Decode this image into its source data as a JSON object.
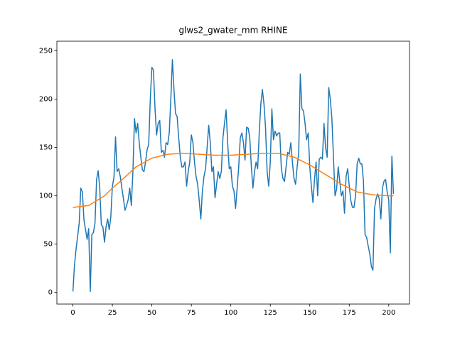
{
  "chart_data": {
    "type": "line",
    "title": "glws2_gwater_mm RHINE",
    "xlim": [
      -10.15,
      213.15
    ],
    "ylim": [
      -12,
      260
    ],
    "xticks": [
      0,
      25,
      50,
      75,
      100,
      125,
      150,
      175,
      200
    ],
    "yticks": [
      0,
      50,
      100,
      150,
      200,
      250
    ],
    "x": [
      0,
      1,
      2,
      3,
      4,
      5,
      6,
      7,
      8,
      9,
      10,
      11,
      12,
      13,
      14,
      15,
      16,
      17,
      18,
      19,
      20,
      21,
      22,
      23,
      24,
      25,
      26,
      27,
      28,
      29,
      30,
      31,
      32,
      33,
      34,
      35,
      36,
      37,
      38,
      39,
      40,
      41,
      42,
      43,
      44,
      45,
      46,
      47,
      48,
      49,
      50,
      51,
      52,
      53,
      54,
      55,
      56,
      57,
      58,
      59,
      60,
      61,
      62,
      63,
      64,
      65,
      66,
      67,
      68,
      69,
      70,
      71,
      72,
      73,
      74,
      75,
      76,
      77,
      78,
      79,
      80,
      81,
      82,
      83,
      84,
      85,
      86,
      87,
      88,
      89,
      90,
      91,
      92,
      93,
      94,
      95,
      96,
      97,
      98,
      99,
      100,
      101,
      102,
      103,
      104,
      105,
      106,
      107,
      108,
      109,
      110,
      111,
      112,
      113,
      114,
      115,
      116,
      117,
      118,
      119,
      120,
      121,
      122,
      123,
      124,
      125,
      126,
      127,
      128,
      129,
      130,
      131,
      132,
      133,
      134,
      135,
      136,
      137,
      138,
      139,
      140,
      141,
      142,
      143,
      144,
      145,
      146,
      147,
      148,
      149,
      150,
      151,
      152,
      153,
      154,
      155,
      156,
      157,
      158,
      159,
      160,
      161,
      162,
      163,
      164,
      165,
      166,
      167,
      168,
      169,
      170,
      171,
      172,
      173,
      174,
      175,
      176,
      177,
      178,
      179,
      180,
      181,
      182,
      183,
      184,
      185,
      186,
      187,
      188,
      189,
      190,
      191,
      192,
      193,
      194,
      195,
      196,
      197,
      198,
      199,
      200,
      201,
      202,
      203
    ],
    "series": [
      {
        "color": "#1f77b4",
        "values": [
          1,
          28,
          45,
          58,
          72,
          108,
          104,
          75,
          65,
          55,
          66,
          1,
          60,
          62,
          72,
          117,
          126,
          108,
          70,
          68,
          52,
          68,
          76,
          65,
          78,
          110,
          119,
          161,
          125,
          128,
          120,
          108,
          97,
          85,
          90,
          96,
          108,
          90,
          125,
          180,
          165,
          175,
          155,
          140,
          127,
          125,
          135,
          148,
          153,
          200,
          233,
          230,
          190,
          163,
          175,
          178,
          145,
          147,
          140,
          155,
          153,
          165,
          200,
          241,
          210,
          185,
          182,
          160,
          140,
          130,
          130,
          135,
          110,
          125,
          135,
          163,
          155,
          135,
          120,
          112,
          95,
          76,
          105,
          120,
          128,
          150,
          173,
          155,
          125,
          130,
          98,
          112,
          125,
          118,
          125,
          160,
          175,
          189,
          155,
          128,
          130,
          110,
          105,
          87,
          108,
          130,
          160,
          165,
          155,
          137,
          171,
          170,
          160,
          130,
          108,
          125,
          135,
          128,
          165,
          195,
          210,
          195,
          170,
          125,
          110,
          135,
          190,
          158,
          167,
          162,
          165,
          165,
          128,
          118,
          115,
          130,
          145,
          143,
          155,
          135,
          118,
          112,
          130,
          145,
          226,
          190,
          188,
          175,
          158,
          165,
          130,
          110,
          93,
          117,
          135,
          100,
          138,
          140,
          138,
          175,
          150,
          140,
          212,
          200,
          180,
          140,
          100,
          107,
          130,
          115,
          100,
          105,
          82,
          120,
          128,
          110,
          95,
          88,
          88,
          100,
          133,
          139,
          133,
          133,
          115,
          60,
          57,
          48,
          40,
          27,
          23,
          87,
          97,
          102,
          97,
          76,
          108,
          115,
          117,
          104,
          96,
          41,
          141,
          102
        ]
      },
      {
        "color": "#ff7f0e",
        "x": [
          0,
          10,
          20,
          25,
          30,
          40,
          50,
          60,
          70,
          80,
          90,
          100,
          110,
          120,
          130,
          140,
          150,
          160,
          170,
          180,
          190,
          200,
          203
        ],
        "values": [
          88,
          90,
          100,
          108,
          115,
          130,
          139,
          143,
          144,
          143,
          142,
          142,
          143,
          144,
          144,
          140,
          132,
          122,
          112,
          104,
          101,
          100,
          100
        ]
      }
    ]
  }
}
